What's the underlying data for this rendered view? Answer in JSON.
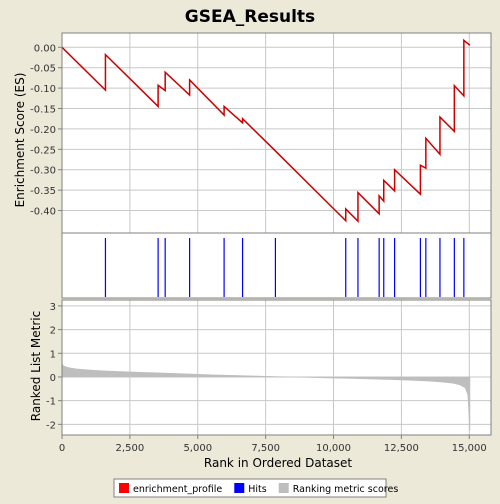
{
  "chart_data": {
    "type": "line",
    "title": "GSEA_Results",
    "xlabel": "Rank in Ordered Dataset",
    "xlim": [
      0,
      15800
    ],
    "xticks": [
      "0",
      "2,500",
      "5,000",
      "7,500",
      "10,000",
      "12,500",
      "15,000"
    ],
    "xtick_values": [
      0,
      2500,
      5000,
      7500,
      10000,
      12500,
      15000
    ],
    "grid": true,
    "panels": {
      "es": {
        "ylabel": "Enrichment Score (ES)",
        "ylim": [
          -0.455,
          0.035
        ],
        "yticks": [
          "0.00",
          "-0.05",
          "-0.10",
          "-0.15",
          "-0.20",
          "-0.25",
          "-0.30",
          "-0.35",
          "-0.40"
        ],
        "ytick_values": [
          0.0,
          -0.05,
          -0.1,
          -0.15,
          -0.2,
          -0.25,
          -0.3,
          -0.35,
          -0.4
        ],
        "series": [
          {
            "name": "enrichment_profile",
            "color": "#CC0000",
            "x": [
              0,
              1600,
              1600,
              3540,
              3540,
              3800,
              3800,
              4700,
              4700,
              5970,
              5970,
              6650,
              6650,
              7860,
              10450,
              10450,
              10900,
              10900,
              11680,
              11680,
              11850,
              11850,
              12250,
              12250,
              13200,
              13200,
              13400,
              13400,
              13920,
              13920,
              14450,
              14450,
              14800,
              14800,
              15020
            ],
            "y": [
              0.0,
              -0.105,
              -0.018,
              -0.145,
              -0.093,
              -0.106,
              -0.061,
              -0.117,
              -0.08,
              -0.166,
              -0.145,
              -0.185,
              -0.175,
              -0.254,
              -0.425,
              -0.396,
              -0.426,
              -0.356,
              -0.408,
              -0.364,
              -0.377,
              -0.326,
              -0.352,
              -0.3,
              -0.36,
              -0.289,
              -0.296,
              -0.223,
              -0.262,
              -0.171,
              -0.206,
              -0.094,
              -0.119,
              0.017,
              0.005
            ]
          }
        ]
      },
      "hits": {
        "name": "Hits",
        "color": "#0000FF",
        "x": [
          1600,
          3540,
          3800,
          4700,
          5970,
          6650,
          7860,
          10450,
          10900,
          11680,
          11850,
          12250,
          13200,
          13400,
          13920,
          14450,
          14800
        ]
      },
      "metric": {
        "name": "Ranking metric scores",
        "ylabel": "Ranked List Metric",
        "color": "#BEBEBE",
        "ylim": [
          -2.45,
          3.25
        ],
        "yticks": [
          "3",
          "2",
          "1",
          "0",
          "-1",
          "-2"
        ],
        "ytick_values": [
          3,
          2,
          1,
          0,
          -1,
          -2
        ],
        "x": [
          0,
          50,
          150,
          300,
          500,
          800,
          1200,
          1600,
          2000,
          2500,
          3000,
          3500,
          4000,
          4500,
          5000,
          5500,
          6000,
          6500,
          7000,
          7500,
          8000,
          8500,
          9000,
          9500,
          10000,
          10500,
          11000,
          11500,
          12000,
          12500,
          13000,
          13500,
          14000,
          14400,
          14650,
          14850,
          14950,
          15020
        ],
        "y": [
          0.55,
          0.47,
          0.42,
          0.38,
          0.34,
          0.31,
          0.28,
          0.25,
          0.23,
          0.21,
          0.19,
          0.17,
          0.15,
          0.13,
          0.11,
          0.09,
          0.07,
          0.055,
          0.04,
          0.025,
          0.01,
          0.0,
          -0.01,
          -0.025,
          -0.04,
          -0.055,
          -0.07,
          -0.085,
          -0.1,
          -0.12,
          -0.14,
          -0.17,
          -0.21,
          -0.26,
          -0.33,
          -0.45,
          -0.75,
          -2.25
        ]
      }
    },
    "legend": {
      "position": "bottom",
      "entries": [
        {
          "label": "enrichment_profile",
          "color": "#FF0000"
        },
        {
          "label": "Hits",
          "color": "#0000FF"
        },
        {
          "label": "Ranking metric scores",
          "color": "#BEBEBE"
        }
      ]
    }
  }
}
